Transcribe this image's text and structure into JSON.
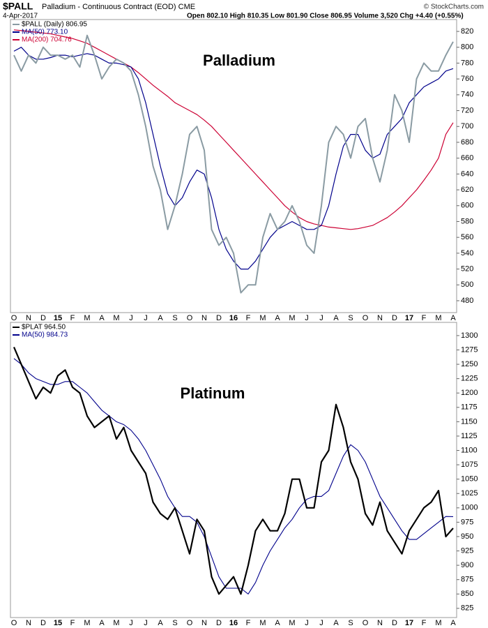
{
  "chart_data": [
    {
      "type": "line",
      "title": "$PALL",
      "subtitle": "Palladium - Continuous Contract (EOD) CME",
      "date": "4-Apr-2017",
      "quote": "Open 802.10 High 810.35 Low 801.90 Close 806.95 Volume 3,520 Chg +4.40 (+0.55%)",
      "watermark": "© StockCharts.com",
      "annotation": "Palladium",
      "categories": [
        "O",
        null,
        "N",
        null,
        "D",
        null,
        "15",
        null,
        "F",
        null,
        "M",
        null,
        "A",
        null,
        "M",
        null,
        "J",
        null,
        "J",
        null,
        "A",
        null,
        "S",
        null,
        "O",
        null,
        "N",
        null,
        "D",
        null,
        "16",
        null,
        "F",
        null,
        "M",
        null,
        "A",
        null,
        "M",
        null,
        "J",
        null,
        "J",
        null,
        "A",
        null,
        "S",
        null,
        "O",
        null,
        "N",
        null,
        "D",
        null,
        "17",
        null,
        "F",
        null,
        "M",
        null,
        "A"
      ],
      "series": [
        {
          "name": "$PALL (Daily) 806.95",
          "color": "#8a9ba3",
          "values": [
            790,
            770,
            790,
            780,
            800,
            790,
            790,
            785,
            790,
            775,
            815,
            790,
            760,
            775,
            785,
            780,
            770,
            740,
            700,
            650,
            620,
            570,
            600,
            640,
            690,
            700,
            670,
            570,
            550,
            560,
            540,
            490,
            500,
            500,
            560,
            590,
            570,
            580,
            600,
            580,
            550,
            540,
            600,
            680,
            700,
            690,
            660,
            700,
            710,
            660,
            630,
            670,
            740,
            720,
            680,
            760,
            780,
            770,
            770,
            790,
            806.95
          ]
        },
        {
          "name": "MA(50) 773.10",
          "color": "#00008b",
          "values": [
            795,
            800,
            790,
            785,
            785,
            787,
            790,
            790,
            788,
            790,
            792,
            790,
            785,
            780,
            780,
            778,
            775,
            760,
            730,
            690,
            650,
            615,
            600,
            610,
            630,
            645,
            640,
            610,
            570,
            545,
            530,
            520,
            520,
            530,
            545,
            560,
            570,
            575,
            580,
            575,
            570,
            570,
            575,
            600,
            640,
            675,
            690,
            690,
            670,
            660,
            665,
            690,
            700,
            710,
            730,
            740,
            750,
            755,
            760,
            770,
            773.1
          ]
        },
        {
          "name": "MA(200) 704.76",
          "color": "#cc0033",
          "values": [
            822,
            821,
            820,
            819,
            818,
            817,
            815,
            813,
            811,
            808,
            805,
            800,
            795,
            790,
            785,
            780,
            775,
            768,
            760,
            752,
            745,
            738,
            730,
            725,
            720,
            715,
            708,
            700,
            690,
            680,
            670,
            660,
            650,
            640,
            630,
            620,
            610,
            600,
            592,
            585,
            580,
            577,
            575,
            573,
            572,
            571,
            570,
            571,
            573,
            575,
            580,
            585,
            592,
            600,
            610,
            620,
            632,
            645,
            660,
            690,
            704.76
          ]
        }
      ],
      "ylim": [
        465,
        835
      ],
      "yticks": [
        480,
        500,
        520,
        540,
        560,
        580,
        600,
        620,
        640,
        660,
        680,
        700,
        720,
        740,
        760,
        780,
        800,
        820
      ]
    },
    {
      "type": "line",
      "annotation": "Platinum",
      "categories": [
        "O",
        null,
        "N",
        null,
        "D",
        null,
        "15",
        null,
        "F",
        null,
        "M",
        null,
        "A",
        null,
        "M",
        null,
        "J",
        null,
        "J",
        null,
        "A",
        null,
        "S",
        null,
        "O",
        null,
        "N",
        null,
        "D",
        null,
        "16",
        null,
        "F",
        null,
        "M",
        null,
        "A",
        null,
        "M",
        null,
        "J",
        null,
        "J",
        null,
        "A",
        null,
        "S",
        null,
        "O",
        null,
        "N",
        null,
        "D",
        null,
        "17",
        null,
        "F",
        null,
        "M",
        null,
        "A"
      ],
      "series": [
        {
          "name": "$PLAT 964.50",
          "color": "#000000",
          "values": [
            1280,
            1250,
            1220,
            1190,
            1210,
            1200,
            1230,
            1240,
            1210,
            1200,
            1160,
            1140,
            1150,
            1160,
            1120,
            1140,
            1100,
            1080,
            1060,
            1010,
            990,
            980,
            1000,
            960,
            920,
            980,
            960,
            880,
            850,
            865,
            880,
            850,
            900,
            960,
            980,
            960,
            960,
            990,
            1050,
            1050,
            1000,
            1000,
            1080,
            1100,
            1180,
            1140,
            1080,
            1050,
            990,
            970,
            1010,
            960,
            940,
            920,
            960,
            980,
            1000,
            1010,
            1030,
            950,
            964.5
          ]
        },
        {
          "name": "MA(50) 984.73",
          "color": "#00008b",
          "values": [
            1260,
            1250,
            1235,
            1225,
            1220,
            1215,
            1215,
            1220,
            1220,
            1210,
            1200,
            1185,
            1170,
            1160,
            1150,
            1145,
            1135,
            1120,
            1100,
            1075,
            1050,
            1020,
            1000,
            985,
            985,
            975,
            950,
            915,
            880,
            860,
            860,
            860,
            850,
            870,
            900,
            925,
            945,
            965,
            980,
            1000,
            1015,
            1020,
            1020,
            1030,
            1060,
            1090,
            1110,
            1100,
            1080,
            1050,
            1020,
            1000,
            980,
            960,
            945,
            945,
            955,
            965,
            975,
            985,
            984.73
          ]
        }
      ],
      "ylim": [
        809,
        1323
      ],
      "yticks": [
        825,
        850,
        875,
        900,
        925,
        950,
        975,
        1000,
        1025,
        1050,
        1075,
        1100,
        1125,
        1150,
        1175,
        1200,
        1225,
        1250,
        1275,
        1300
      ]
    }
  ]
}
